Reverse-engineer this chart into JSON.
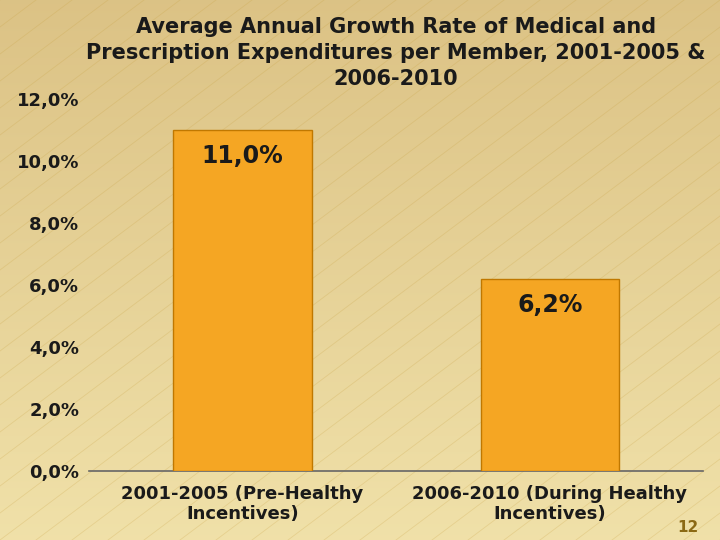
{
  "title_line1": "Average Annual Growth Rate of Medical and",
  "title_line2": "Prescription Expenditures per Member, 2001-2005 &",
  "title_line3": "2006-2010",
  "categories": [
    "2001-2005 (Pre-Healthy\nIncentives)",
    "2006-2010 (During Healthy\nIncentives)"
  ],
  "values": [
    11.0,
    6.2
  ],
  "bar_color": "#F5A623",
  "bar_edge_color": "#C07800",
  "labels": [
    "11,0%",
    "6,2%"
  ],
  "ylim": [
    0,
    12.0
  ],
  "yticks": [
    0,
    2,
    4,
    6,
    8,
    10,
    12
  ],
  "ytick_labels": [
    "0,0%",
    "2,0%",
    "4,0%",
    "6,0%",
    "8,0%",
    "10,0%",
    "12,0%"
  ],
  "title_fontsize": 15,
  "tick_fontsize": 13,
  "label_fontsize": 17,
  "xlabel_fontsize": 13,
  "page_number": "12",
  "title_color": "#1a1a1a",
  "text_color": "#1a1a1a"
}
